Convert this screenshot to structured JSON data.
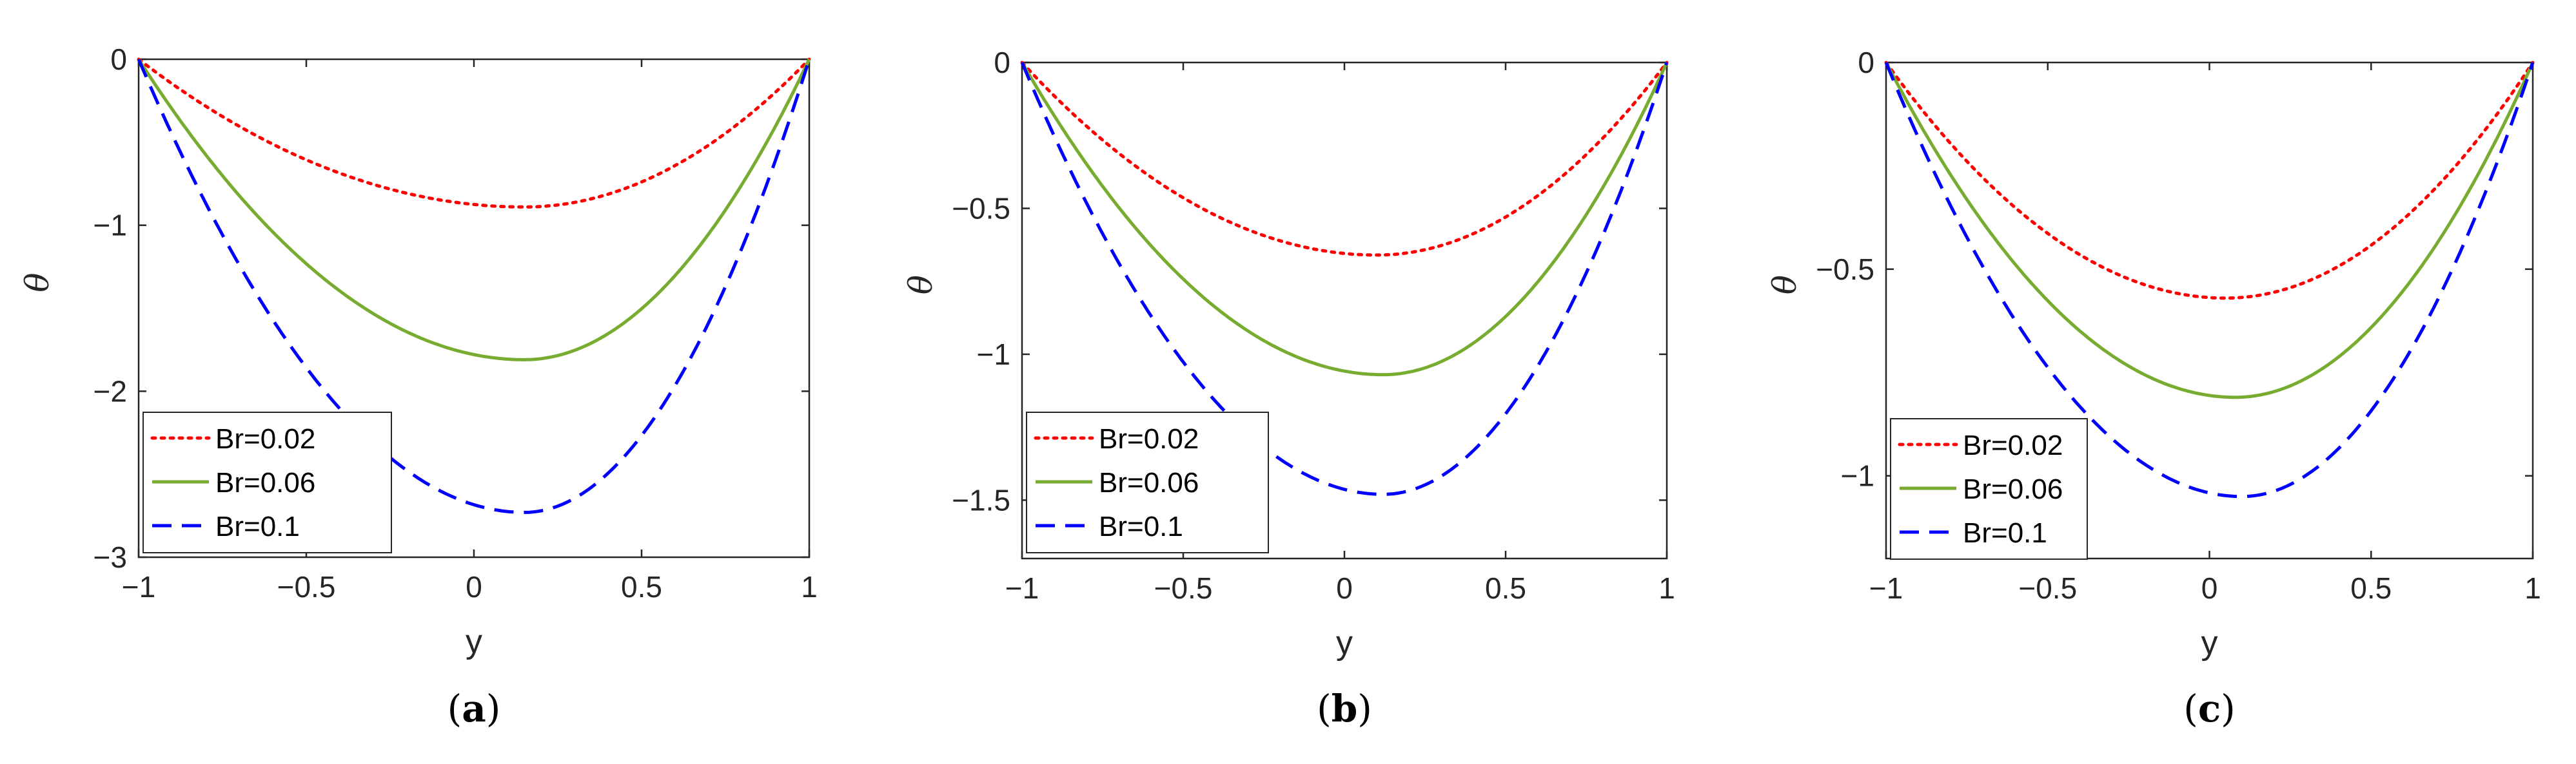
{
  "colors": {
    "background": "#ffffff",
    "axis": "#262626",
    "series_red": "#ff0000",
    "series_green": "#77ac30",
    "series_blue": "#0000ff"
  },
  "chart_data": [
    {
      "type": "line",
      "panel": "a",
      "caption": {
        "open": "(",
        "letter": "a",
        "close": ")"
      },
      "xlabel": "y",
      "ylabel": "θ",
      "xlim": [
        -1,
        1
      ],
      "ylim": [
        -3,
        0
      ],
      "xticks": [
        -1,
        -0.5,
        0,
        0.5,
        1
      ],
      "xtick_labels": [
        "−1",
        "−0.5",
        "0",
        "0.5",
        "1"
      ],
      "yticks": [
        0,
        -1,
        -2,
        -3
      ],
      "ytick_labels": [
        "0",
        "−1",
        "−2",
        "−3"
      ],
      "legend_location": "bottom-left",
      "series": [
        {
          "name": "Br=0.02",
          "color": "#ff0000",
          "style": "dotted",
          "min_value": -0.89,
          "min_at": 0.15
        },
        {
          "name": "Br=0.06",
          "color": "#77ac30",
          "style": "solid",
          "min_value": -1.81,
          "min_at": 0.15
        },
        {
          "name": "Br=0.1",
          "color": "#0000ff",
          "style": "dashed",
          "min_value": -2.73,
          "min_at": 0.15
        }
      ]
    },
    {
      "type": "line",
      "panel": "b",
      "caption": {
        "open": "(",
        "letter": "b",
        "close": ")"
      },
      "xlabel": "y",
      "ylabel": "θ",
      "xlim": [
        -1,
        1
      ],
      "ylim": [
        -1.7,
        0
      ],
      "xticks": [
        -1,
        -0.5,
        0,
        0.5,
        1
      ],
      "xtick_labels": [
        "−1",
        "−0.5",
        "0",
        "0.5",
        "1"
      ],
      "yticks": [
        0,
        -0.5,
        -1,
        -1.5
      ],
      "ytick_labels": [
        "0",
        "−0.5",
        "−1",
        "−1.5"
      ],
      "legend_location": "bottom-left",
      "series": [
        {
          "name": "Br=0.02",
          "color": "#ff0000",
          "style": "dotted",
          "min_value": -0.66,
          "min_at": 0.1
        },
        {
          "name": "Br=0.06",
          "color": "#77ac30",
          "style": "solid",
          "min_value": -1.07,
          "min_at": 0.12
        },
        {
          "name": "Br=0.1",
          "color": "#0000ff",
          "style": "dashed",
          "min_value": -1.48,
          "min_at": 0.12
        }
      ]
    },
    {
      "type": "line",
      "panel": "c",
      "caption": {
        "open": "(",
        "letter": "c",
        "close": ")"
      },
      "xlabel": "y",
      "ylabel": "θ",
      "xlim": [
        -1,
        1
      ],
      "ylim": [
        -1.2,
        0
      ],
      "xticks": [
        -1,
        -0.5,
        0,
        0.5,
        1
      ],
      "xtick_labels": [
        "−1",
        "−0.5",
        "0",
        "0.5",
        "1"
      ],
      "yticks": [
        0,
        -0.5,
        -1
      ],
      "ytick_labels": [
        "0",
        "−0.5",
        "−1"
      ],
      "legend_location": "bottom-left",
      "series": [
        {
          "name": "Br=0.02",
          "color": "#ff0000",
          "style": "dotted",
          "min_value": -0.57,
          "min_at": 0.05
        },
        {
          "name": "Br=0.06",
          "color": "#77ac30",
          "style": "solid",
          "min_value": -0.81,
          "min_at": 0.08
        },
        {
          "name": "Br=0.1",
          "color": "#0000ff",
          "style": "dashed",
          "min_value": -1.05,
          "min_at": 0.1
        }
      ]
    }
  ]
}
